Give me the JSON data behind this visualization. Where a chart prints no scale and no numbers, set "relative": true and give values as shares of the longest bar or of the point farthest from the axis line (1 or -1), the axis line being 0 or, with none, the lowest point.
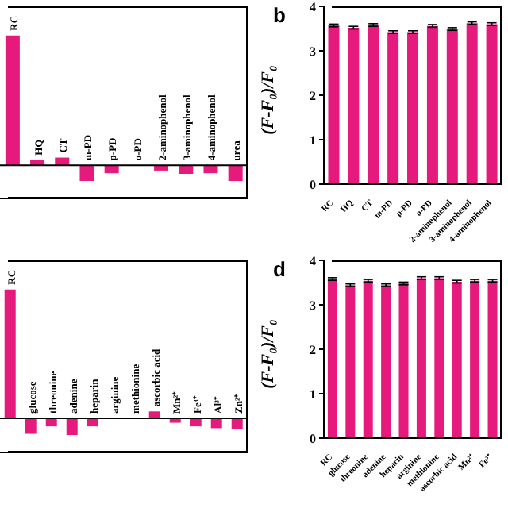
{
  "chart_data": [
    {
      "type": "bar",
      "relative": true,
      "categories": [
        "RC",
        "HQ",
        "CT",
        "m-PD",
        "p-PD",
        "o-PD",
        "2-aminophenol",
        "3-aminophenol",
        "4-aminophenol",
        "urea"
      ],
      "values": [
        1,
        0.04,
        0.06,
        -0.12,
        -0.06,
        0,
        -0.04,
        -0.065,
        -0.06,
        -0.12
      ],
      "color": "#e6197d"
    },
    {
      "type": "bar",
      "title": "b",
      "ylabel": "(F-F₀)/F₀",
      "categories": [
        "RC",
        "HQ",
        "CT",
        "m-PD",
        "p-PD",
        "o-PD",
        "2-aminophenol",
        "3-aminophenol",
        "4-aminophenol"
      ],
      "values": [
        3.57,
        3.52,
        3.58,
        3.42,
        3.42,
        3.56,
        3.49,
        3.62,
        3.6
      ],
      "errors": [
        0.03,
        0.03,
        0.03,
        0.03,
        0.03,
        0.03,
        0.03,
        0.03,
        0.03
      ],
      "color": "#e6197d",
      "ylim": [
        0,
        4
      ],
      "yticks": [
        0,
        1,
        2,
        3,
        4
      ]
    },
    {
      "type": "bar",
      "relative": true,
      "categories": [
        "RC",
        "glucose",
        "threonine",
        "adenine",
        "heparin",
        "arginine",
        "methionine",
        "ascorbic acid",
        "Mn²⁺",
        "Fe³⁺",
        "Al³⁺",
        "Zn²⁺"
      ],
      "values": [
        1,
        -0.12,
        -0.063,
        -0.13,
        -0.063,
        0,
        0,
        0.053,
        -0.035,
        -0.063,
        -0.077,
        -0.084
      ],
      "color": "#e6197d"
    },
    {
      "type": "bar",
      "title": "d",
      "ylabel": "(F-F₀)/F₀",
      "categories": [
        "RC",
        "glucose",
        "threonine",
        "adenine",
        "heparin",
        "arginine",
        "methionine",
        "ascorbic acid",
        "Mn²⁺",
        "Fe³⁺"
      ],
      "values": [
        3.58,
        3.44,
        3.54,
        3.44,
        3.48,
        3.6,
        3.6,
        3.52,
        3.54,
        3.54
      ],
      "errors": [
        0.03,
        0.03,
        0.03,
        0.03,
        0.03,
        0.03,
        0.03,
        0.03,
        0.03,
        0.03
      ],
      "color": "#e6197d",
      "ylim": [
        0,
        4
      ],
      "yticks": [
        0,
        1,
        2,
        3,
        4
      ]
    }
  ]
}
